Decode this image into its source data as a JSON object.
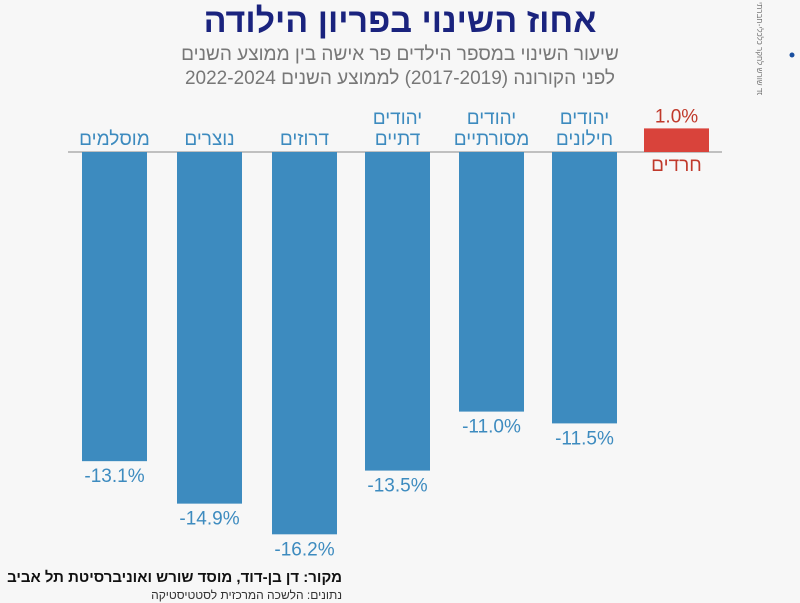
{
  "chart_data": {
    "type": "bar",
    "title": "אחוז השינוי בפריון הילודה",
    "subtitle": [
      "שיעור השינוי במספר הילדים פר אישה בין ממוצע השנים",
      "לפני הקורונה (2017-2019) לממוצע השנים 2022-2024"
    ],
    "categories": [
      [
        "מוסלמים"
      ],
      [
        "נוצרים"
      ],
      [
        "דרוזים"
      ],
      [
        "יהודים",
        "דתיים"
      ],
      [
        "יהודים",
        "מסורתיים"
      ],
      [
        "יהודים",
        "חילונים"
      ],
      [
        "חרדים"
      ]
    ],
    "values": [
      -13.1,
      -14.9,
      -16.2,
      -13.5,
      -11.0,
      -11.5,
      1.0
    ],
    "data_labels": [
      "-13.1%",
      "-14.9%",
      "-16.2%",
      "-13.5%",
      "-11.0%",
      "-11.5%",
      "1.0%"
    ],
    "colors": {
      "negative": "#3d8bbf",
      "positive": "#d9433b",
      "negative_text": "#3d8bbf",
      "positive_text": "#c0392b",
      "title": "#1a237e"
    },
    "ylim": [
      -16.2,
      1.0
    ],
    "grid": false,
    "legend": "none"
  },
  "source": {
    "line1": "מקור:  דן בן-דוד, מוסד שורש ואוניברסיטת תל אביב",
    "line2": "נתונים: הלשכה המרכזית לסטטיסטיקה"
  },
  "logo": {
    "text": "שורש",
    "small_text": "מוסד שורש לחקר כלכלי-חברתי"
  }
}
